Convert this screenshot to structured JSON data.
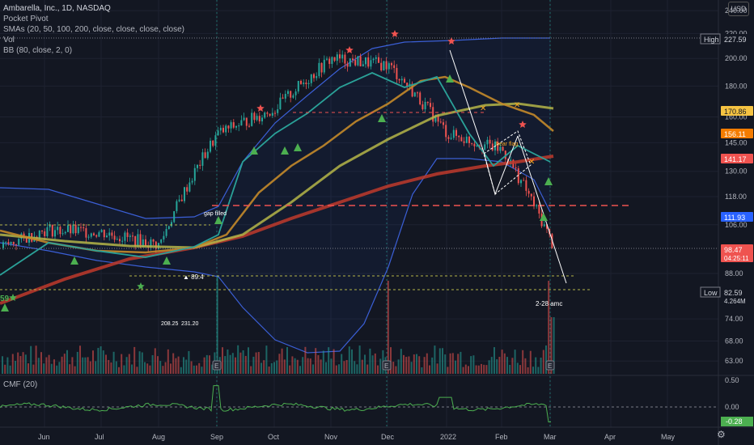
{
  "legend": {
    "title": "Ambarella, Inc., 1D, NASDAQ",
    "lines": [
      "Pocket Pivot",
      "SMAs (20, 50, 100, 200, close, close, close, close)",
      "Vol",
      "BB (80, close, 2, 0)"
    ],
    "cmf": "CMF (20)"
  },
  "currency": "USD",
  "colors": {
    "background": "#131722",
    "up": "#26a69a",
    "down": "#ef5350",
    "sma20": "#2aa198",
    "sma50": "#c48a2a",
    "sma100": "#b5b548",
    "sma200": "#c0392b",
    "bb": "#3b5fd6",
    "cmf": "#4caf50"
  },
  "chart_data": {
    "type": "candlestick",
    "price_axis": {
      "ticks": [
        "240.00",
        "220.00",
        "200.00",
        "180.00",
        "160.00",
        "145.00",
        "130.00",
        "118.00",
        "106.00",
        "88.00",
        "74.00",
        "68.00",
        "63.00"
      ],
      "ylim": [
        60,
        250
      ],
      "scale": "log"
    },
    "time_axis": {
      "labels": [
        "Jun",
        "Jul",
        "Aug",
        "Sep",
        "Oct",
        "Nov",
        "Dec",
        "2022",
        "Feb",
        "Mar",
        "Apr",
        "May"
      ]
    },
    "price_labels": [
      {
        "text": "High",
        "value": "227.59",
        "kind": "high"
      },
      {
        "text": "",
        "value": "170.86",
        "kind": "sma50"
      },
      {
        "text": "",
        "value": "156.11",
        "kind": "sma20"
      },
      {
        "text": "",
        "value": "141.17",
        "kind": "sma200"
      },
      {
        "text": "",
        "value": "111.93",
        "kind": "bb"
      },
      {
        "text": "",
        "value": "98.47",
        "sub": "04:25:11",
        "kind": "last"
      },
      {
        "text": "Low",
        "value": "82.59",
        "sub": "4.264M",
        "kind": "low"
      }
    ],
    "annotations": [
      {
        "text": "gap filled"
      },
      {
        "text": "89.4"
      },
      {
        "text": "208.25"
      },
      {
        "text": "231.20"
      },
      {
        "text": "bear flag"
      },
      {
        "text": "2-28 amc"
      },
      {
        "text": "59"
      }
    ],
    "cmf_axis": {
      "ticks": [
        "0.50",
        "0.00"
      ],
      "last": "-0.28"
    },
    "monthly_closes": [
      {
        "month": "Jun",
        "close": 104
      },
      {
        "month": "Jul",
        "close": 103
      },
      {
        "month": "Aug",
        "close": 98
      },
      {
        "month": "Sep",
        "close": 150
      },
      {
        "month": "Oct",
        "close": 165
      },
      {
        "month": "Nov",
        "close": 200
      },
      {
        "month": "Dec",
        "close": 195
      },
      {
        "month": "2022",
        "close": 150
      },
      {
        "month": "Feb",
        "close": 141
      },
      {
        "month": "Mar",
        "close": 98.47
      }
    ]
  }
}
